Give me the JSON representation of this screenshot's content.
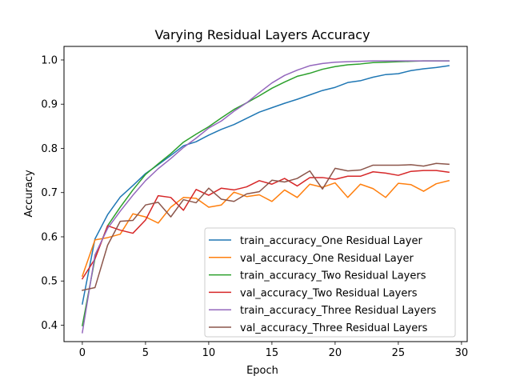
{
  "chart_data": {
    "type": "line",
    "title": "Varying Residual Layers Accuracy",
    "xlabel": "Epoch",
    "ylabel": "Accuracy",
    "xlim": [
      -1.45,
      30.45
    ],
    "ylim": [
      0.3629,
      1.0307
    ],
    "xticks": [
      0,
      5,
      10,
      15,
      20,
      25,
      30
    ],
    "yticks": [
      0.4,
      0.5,
      0.6,
      0.7,
      0.8,
      0.9,
      1.0
    ],
    "ytick_labels": [
      "0.4",
      "0.5",
      "0.6",
      "0.7",
      "0.8",
      "0.9",
      "1.0"
    ],
    "grid": false,
    "legend_position": "lower-right",
    "x": [
      0,
      1,
      2,
      3,
      4,
      5,
      6,
      7,
      8,
      9,
      10,
      11,
      12,
      13,
      14,
      15,
      16,
      17,
      18,
      19,
      20,
      21,
      22,
      23,
      24,
      25,
      26,
      27,
      28,
      29
    ],
    "series": [
      {
        "name": "train_accuracy_One Residual Layer",
        "color": "#1f77b4",
        "values": [
          0.448,
          0.595,
          0.65,
          0.69,
          0.716,
          0.743,
          0.763,
          0.784,
          0.806,
          0.815,
          0.83,
          0.843,
          0.854,
          0.868,
          0.882,
          0.892,
          0.902,
          0.911,
          0.921,
          0.931,
          0.938,
          0.949,
          0.953,
          0.961,
          0.967,
          0.969,
          0.976,
          0.98,
          0.983,
          0.987
        ]
      },
      {
        "name": "val_accuracy_One Residual Layer",
        "color": "#ff7f0e",
        "values": [
          0.511,
          0.593,
          0.598,
          0.606,
          0.652,
          0.645,
          0.631,
          0.667,
          0.689,
          0.687,
          0.667,
          0.672,
          0.701,
          0.691,
          0.695,
          0.68,
          0.706,
          0.689,
          0.719,
          0.712,
          0.722,
          0.689,
          0.719,
          0.709,
          0.689,
          0.721,
          0.718,
          0.703,
          0.72,
          0.727
        ]
      },
      {
        "name": "train_accuracy_Two Residual Layers",
        "color": "#2ca02c",
        "values": [
          0.399,
          0.551,
          0.625,
          0.667,
          0.706,
          0.741,
          0.765,
          0.788,
          0.814,
          0.832,
          0.849,
          0.869,
          0.888,
          0.903,
          0.919,
          0.936,
          0.95,
          0.963,
          0.97,
          0.979,
          0.985,
          0.989,
          0.991,
          0.994,
          0.995,
          0.996,
          0.997,
          0.998,
          0.998,
          0.998
        ]
      },
      {
        "name": "val_accuracy_Two Residual Layers",
        "color": "#d62728",
        "values": [
          0.505,
          0.55,
          0.625,
          0.615,
          0.608,
          0.638,
          0.693,
          0.689,
          0.66,
          0.707,
          0.694,
          0.71,
          0.706,
          0.713,
          0.727,
          0.719,
          0.732,
          0.715,
          0.734,
          0.734,
          0.73,
          0.737,
          0.737,
          0.747,
          0.744,
          0.739,
          0.748,
          0.75,
          0.75,
          0.746
        ]
      },
      {
        "name": "train_accuracy_Three Residual Layers",
        "color": "#9467bd",
        "values": [
          0.383,
          0.559,
          0.619,
          0.658,
          0.694,
          0.727,
          0.754,
          0.777,
          0.802,
          0.823,
          0.846,
          0.862,
          0.884,
          0.903,
          0.926,
          0.948,
          0.965,
          0.977,
          0.987,
          0.992,
          0.995,
          0.996,
          0.997,
          0.998,
          0.998,
          0.998,
          0.998,
          0.998,
          0.998,
          0.998
        ]
      },
      {
        "name": "val_accuracy_Three Residual Layers",
        "color": "#8c564b",
        "values": [
          0.479,
          0.485,
          0.581,
          0.635,
          0.637,
          0.672,
          0.678,
          0.645,
          0.684,
          0.677,
          0.71,
          0.685,
          0.68,
          0.697,
          0.702,
          0.728,
          0.724,
          0.732,
          0.749,
          0.708,
          0.755,
          0.749,
          0.751,
          0.762,
          0.762,
          0.762,
          0.763,
          0.76,
          0.766,
          0.764
        ]
      }
    ]
  }
}
